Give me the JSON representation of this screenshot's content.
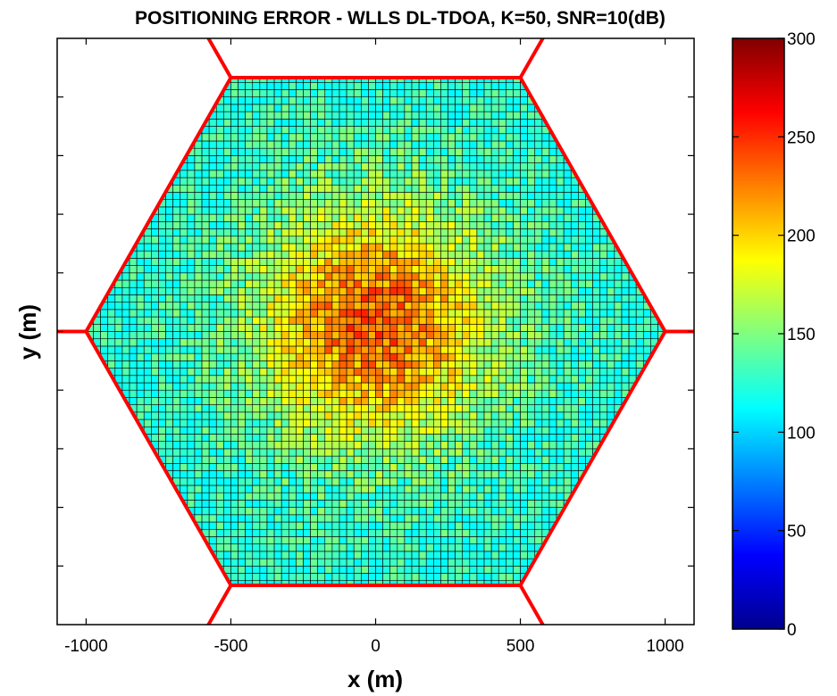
{
  "chart_data": {
    "type": "heatmap",
    "title": "POSITIONING ERROR - WLLS DL-TDOA, K=50, SNR=10(dB)",
    "xlabel": "x (m)",
    "ylabel": "y (m)",
    "xlim": [
      -1100,
      1100
    ],
    "ylim": [
      -1000,
      1000
    ],
    "x_ticks": [
      -1000,
      -500,
      0,
      500,
      1000
    ],
    "x_tick_labels": [
      "-1000",
      "-500",
      "0",
      "500",
      "1000"
    ],
    "colorbar": {
      "colormap": "jet",
      "min": 0,
      "max": 300,
      "ticks": [
        0,
        50,
        100,
        150,
        200,
        250,
        300
      ],
      "tick_labels": [
        "0",
        "50",
        "100",
        "150",
        "200",
        "250",
        "300"
      ]
    },
    "cell_region": "hexagon",
    "hexagon_vertices": [
      [
        -500,
        866
      ],
      [
        500,
        866
      ],
      [
        1000,
        0
      ],
      [
        500,
        -866
      ],
      [
        -500,
        -866
      ],
      [
        -1000,
        0
      ]
    ],
    "grid_step": 25,
    "error_model": {
      "center": [
        0,
        30
      ],
      "peak_value": 235,
      "edge_value": 120,
      "min_value": 110,
      "noise": 25
    },
    "boundary_color": "#ff0000"
  }
}
